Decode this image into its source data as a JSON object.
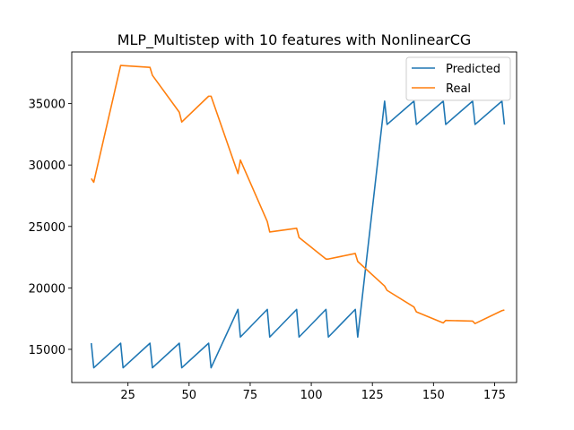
{
  "chart_data": {
    "type": "line",
    "title": "MLP_Multistep with 10 features with NonlinearCG",
    "xlabel": "",
    "ylabel": "",
    "xlim": [
      2,
      184
    ],
    "ylim": [
      12300,
      39200
    ],
    "xticks": [
      25,
      50,
      75,
      100,
      125,
      150,
      175
    ],
    "yticks": [
      15000,
      20000,
      25000,
      30000,
      35000
    ],
    "legend_position": "top-right",
    "grid": false,
    "series": [
      {
        "name": "Predicted",
        "color": "#1f77b4",
        "x": [
          10,
          11,
          22,
          23,
          34,
          35,
          46,
          47,
          58,
          59,
          70,
          71,
          82,
          83,
          94,
          95,
          106,
          107,
          118,
          119,
          130,
          131,
          142,
          143,
          154,
          155,
          166,
          167,
          178,
          179
        ],
        "y": [
          15500,
          13500,
          15500,
          13500,
          15500,
          13500,
          15500,
          13500,
          15500,
          13500,
          18250,
          16000,
          18250,
          16000,
          18250,
          16000,
          18250,
          16000,
          18250,
          16000,
          35200,
          33300,
          35200,
          33300,
          35200,
          33300,
          35200,
          33300,
          35200,
          33300
        ]
      },
      {
        "name": "Real",
        "color": "#ff7f0e",
        "x": [
          10,
          11,
          22,
          34,
          35,
          46,
          47,
          58,
          59,
          70,
          71,
          82,
          83,
          94,
          95,
          106,
          107,
          118,
          119,
          130,
          131,
          142,
          143,
          154,
          155,
          166,
          167,
          178,
          179
        ],
        "y": [
          28900,
          28600,
          38100,
          37950,
          37300,
          34300,
          33500,
          35600,
          35600,
          29300,
          30400,
          25400,
          24550,
          24850,
          24100,
          22350,
          22350,
          22800,
          22150,
          20150,
          19800,
          18450,
          18050,
          17150,
          17350,
          17300,
          17100,
          18150,
          18200
        ]
      }
    ]
  }
}
